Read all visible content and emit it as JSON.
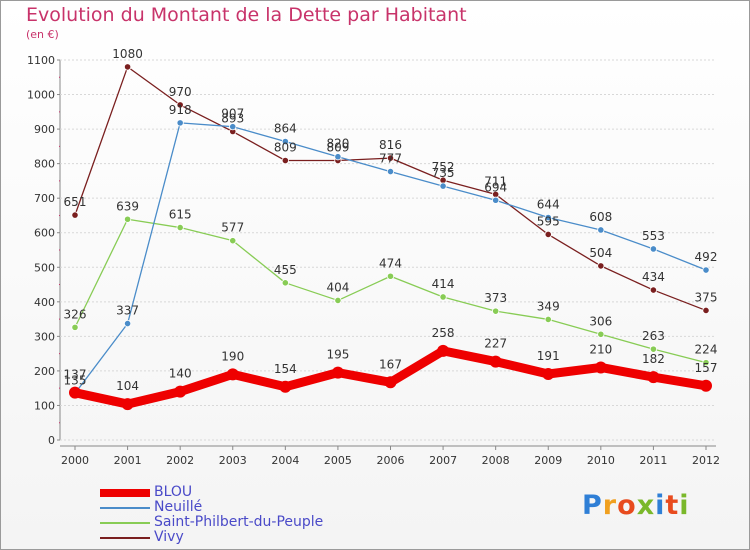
{
  "header": {
    "title": "Evolution du Montant de la Dette par Habitant",
    "unit": "(en €)"
  },
  "chart_data": {
    "type": "line",
    "title": "Evolution du Montant de la Dette par Habitant",
    "ylabel": "(en €)",
    "xlabel": "",
    "ylim": [
      0,
      1100
    ],
    "yticks": [
      0,
      100,
      200,
      300,
      400,
      500,
      600,
      700,
      800,
      900,
      1000,
      1100
    ],
    "categories": [
      "2000",
      "2001",
      "2002",
      "2003",
      "2004",
      "2005",
      "2006",
      "2007",
      "2008",
      "2009",
      "2010",
      "2011",
      "2012"
    ],
    "grid": "horizontal",
    "legend": "bottom-left",
    "series": [
      {
        "name": "BLOU",
        "color": "#ee0000",
        "values": [
          137,
          104,
          140,
          190,
          154,
          195,
          167,
          258,
          227,
          191,
          210,
          182,
          157
        ]
      },
      {
        "name": "Neuillé",
        "color": "#4a8cc9",
        "values": [
          135,
          337,
          918,
          907,
          864,
          820,
          777,
          735,
          694,
          644,
          608,
          553,
          492
        ]
      },
      {
        "name": "Saint-Philbert-du-Peuple",
        "color": "#88cc55",
        "values": [
          326,
          639,
          615,
          577,
          455,
          404,
          474,
          414,
          373,
          349,
          306,
          263,
          224
        ]
      },
      {
        "name": "Vivy",
        "color": "#7a1f1f",
        "values": [
          651,
          1080,
          970,
          893,
          809,
          809,
          816,
          752,
          711,
          595,
          504,
          434,
          375
        ]
      }
    ]
  },
  "logo": {
    "letters": [
      "P",
      "r",
      "o",
      "x",
      "i",
      "t",
      "i"
    ],
    "colors": [
      "#2f7fd6",
      "#f0a020",
      "#e84b1e",
      "#7ab82a",
      "#2f7fd6",
      "#e84b1e",
      "#7ab82a"
    ]
  }
}
